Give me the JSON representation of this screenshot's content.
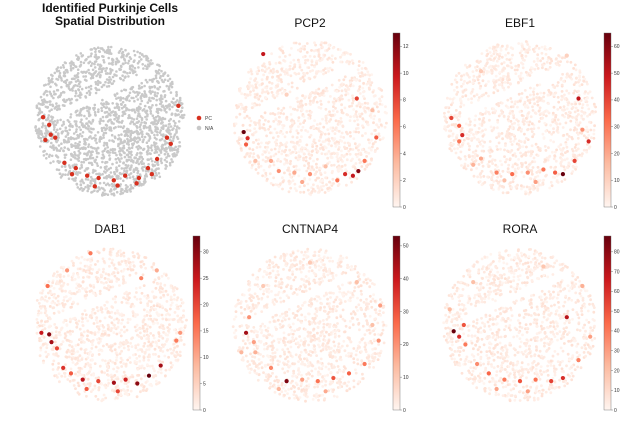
{
  "chart_data": [
    {
      "type": "scatter",
      "title_lines": [
        "Identified Purkinje Cells",
        "Spatial Distribution"
      ],
      "legend": [
        {
          "label": "PC",
          "color": "#d7301f"
        },
        {
          "label": "N/A",
          "color": "#c8c8c8"
        }
      ],
      "legend_position": "right",
      "grid": false,
      "pc_cells": [
        [
          -0.88,
          -0.05
        ],
        [
          -0.8,
          0.05
        ],
        [
          -0.78,
          0.18
        ],
        [
          -0.72,
          0.22
        ],
        [
          -0.85,
          0.25
        ],
        [
          -0.6,
          0.55
        ],
        [
          -0.45,
          0.62
        ],
        [
          -0.3,
          0.72
        ],
        [
          -0.15,
          0.75
        ],
        [
          0.05,
          0.78
        ],
        [
          0.2,
          0.72
        ],
        [
          0.38,
          0.75
        ],
        [
          0.5,
          0.62
        ],
        [
          0.62,
          0.5
        ],
        [
          0.8,
          0.3
        ],
        [
          0.75,
          0.22
        ],
        [
          -0.5,
          0.7
        ],
        [
          0.1,
          0.85
        ],
        [
          0.35,
          0.82
        ],
        [
          -0.2,
          0.86
        ],
        [
          0.55,
          0.7
        ],
        [
          0.9,
          -0.2
        ]
      ]
    },
    {
      "type": "scatter",
      "title": "PCP2",
      "colorbar": {
        "min": 0,
        "max": 13,
        "ticks": [
          0,
          2,
          4,
          6,
          8,
          10,
          12
        ]
      },
      "points": [
        [
          -0.6,
          -0.82,
          10
        ],
        [
          0.6,
          -0.25,
          8
        ],
        [
          -0.85,
          0.18,
          13
        ],
        [
          -0.8,
          0.26,
          9
        ],
        [
          -0.82,
          0.34,
          7
        ],
        [
          -0.5,
          0.55,
          4
        ],
        [
          -0.4,
          0.68,
          5
        ],
        [
          -0.2,
          0.7,
          4
        ],
        [
          0.0,
          0.72,
          5
        ],
        [
          0.2,
          0.62,
          3
        ],
        [
          0.45,
          0.72,
          9
        ],
        [
          0.55,
          0.74,
          10
        ],
        [
          0.7,
          0.55,
          6
        ],
        [
          0.85,
          0.25,
          7
        ],
        [
          0.62,
          0.68,
          12
        ],
        [
          -0.7,
          0.55,
          3
        ],
        [
          0.35,
          0.8,
          6
        ],
        [
          -0.1,
          0.82,
          4
        ],
        [
          0.8,
          -0.1,
          3
        ],
        [
          -0.3,
          -0.3,
          2
        ]
      ]
    },
    {
      "type": "scatter",
      "title": "EBF1",
      "colorbar": {
        "min": 0,
        "max": 65,
        "ticks": [
          0,
          10,
          20,
          30,
          40,
          50,
          60
        ]
      },
      "points": [
        [
          0.75,
          -0.25,
          50
        ],
        [
          -0.88,
          0.0,
          40
        ],
        [
          -0.78,
          0.1,
          35
        ],
        [
          -0.74,
          0.22,
          45
        ],
        [
          -0.78,
          0.3,
          30
        ],
        [
          -0.5,
          0.52,
          20
        ],
        [
          -0.3,
          0.7,
          28
        ],
        [
          -0.1,
          0.72,
          32
        ],
        [
          0.1,
          0.7,
          25
        ],
        [
          0.3,
          0.66,
          30
        ],
        [
          0.45,
          0.7,
          35
        ],
        [
          0.55,
          0.72,
          65
        ],
        [
          0.7,
          0.55,
          40
        ],
        [
          0.88,
          0.3,
          45
        ],
        [
          0.8,
          0.15,
          25
        ],
        [
          -0.6,
          0.6,
          18
        ],
        [
          0.2,
          0.82,
          22
        ],
        [
          -0.2,
          0.8,
          15
        ],
        [
          0.6,
          -0.8,
          10
        ],
        [
          -0.5,
          -0.6,
          12
        ]
      ]
    },
    {
      "type": "scatter",
      "title": "DAB1",
      "colorbar": {
        "min": 0,
        "max": 33,
        "ticks": [
          0,
          5,
          10,
          15,
          20,
          25,
          30
        ]
      },
      "points": [
        [
          -0.25,
          -0.92,
          15
        ],
        [
          -0.88,
          0.1,
          25
        ],
        [
          -0.78,
          0.12,
          30
        ],
        [
          -0.75,
          0.22,
          28
        ],
        [
          -0.68,
          0.3,
          20
        ],
        [
          -0.6,
          0.55,
          22
        ],
        [
          -0.5,
          0.62,
          18
        ],
        [
          -0.35,
          0.7,
          26
        ],
        [
          -0.15,
          0.72,
          20
        ],
        [
          0.05,
          0.74,
          28
        ],
        [
          0.2,
          0.7,
          24
        ],
        [
          0.35,
          0.75,
          30
        ],
        [
          0.5,
          0.65,
          33
        ],
        [
          0.65,
          0.52,
          28
        ],
        [
          0.85,
          0.2,
          15
        ],
        [
          0.9,
          0.1,
          12
        ],
        [
          0.1,
          0.85,
          20
        ],
        [
          -0.3,
          0.82,
          18
        ],
        [
          0.4,
          -0.6,
          14
        ],
        [
          -0.8,
          -0.5,
          16
        ],
        [
          -0.55,
          -0.7,
          12
        ],
        [
          0.6,
          -0.7,
          10
        ]
      ]
    },
    {
      "type": "scatter",
      "title": "CNTNAP4",
      "colorbar": {
        "min": 0,
        "max": 53,
        "ticks": [
          0,
          10,
          20,
          30,
          40,
          50
        ]
      },
      "points": [
        [
          -0.82,
          0.1,
          45
        ],
        [
          -0.78,
          -0.1,
          20
        ],
        [
          -0.72,
          0.22,
          18
        ],
        [
          -0.7,
          0.35,
          15
        ],
        [
          -0.5,
          0.55,
          22
        ],
        [
          -0.3,
          0.72,
          50
        ],
        [
          -0.1,
          0.7,
          18
        ],
        [
          0.1,
          0.72,
          25
        ],
        [
          0.3,
          0.68,
          30
        ],
        [
          0.5,
          0.62,
          28
        ],
        [
          0.7,
          0.5,
          24
        ],
        [
          0.88,
          0.2,
          20
        ],
        [
          0.9,
          -0.25,
          18
        ],
        [
          0.6,
          -0.55,
          12
        ],
        [
          -0.6,
          -0.5,
          10
        ],
        [
          0.2,
          0.85,
          16
        ],
        [
          -0.4,
          0.82,
          14
        ],
        [
          0.0,
          -0.8,
          10
        ],
        [
          0.8,
          0.0,
          12
        ],
        [
          -0.88,
          0.35,
          14
        ]
      ]
    },
    {
      "type": "scatter",
      "title": "RORA",
      "colorbar": {
        "min": 0,
        "max": 88,
        "ticks": [
          0,
          10,
          20,
          30,
          40,
          50,
          60,
          70,
          80
        ]
      },
      "points": [
        [
          -0.85,
          0.08,
          88
        ],
        [
          -0.78,
          0.15,
          60
        ],
        [
          -0.72,
          0.0,
          50
        ],
        [
          -0.7,
          0.25,
          40
        ],
        [
          -0.55,
          0.5,
          35
        ],
        [
          -0.4,
          0.62,
          45
        ],
        [
          -0.2,
          0.7,
          40
        ],
        [
          0.0,
          0.72,
          50
        ],
        [
          0.2,
          0.7,
          42
        ],
        [
          0.4,
          0.72,
          55
        ],
        [
          0.55,
          0.68,
          60
        ],
        [
          0.75,
          0.45,
          38
        ],
        [
          0.9,
          0.15,
          30
        ],
        [
          0.6,
          -0.1,
          70
        ],
        [
          0.8,
          -0.5,
          25
        ],
        [
          -0.6,
          -0.55,
          20
        ],
        [
          0.1,
          0.85,
          30
        ],
        [
          -0.3,
          0.82,
          28
        ],
        [
          0.3,
          -0.75,
          18
        ],
        [
          -0.9,
          -0.2,
          22
        ]
      ]
    }
  ]
}
